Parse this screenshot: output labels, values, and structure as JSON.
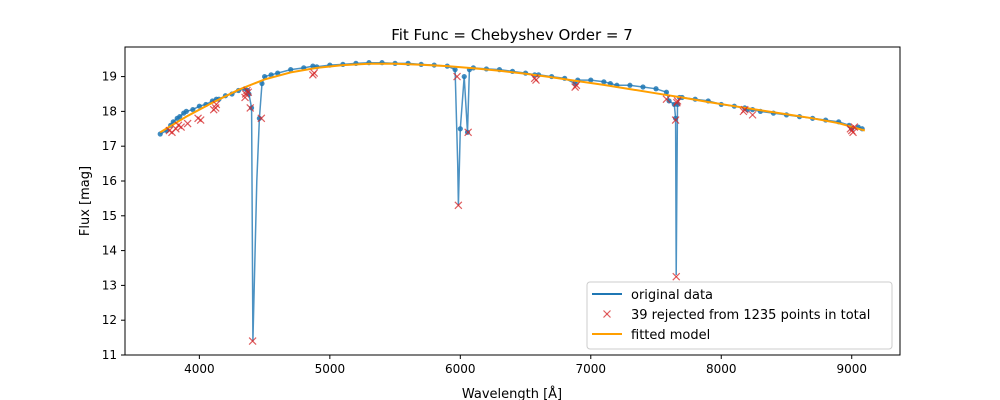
{
  "chart_data": {
    "type": "line",
    "title": "Fit Func = Chebyshev  Order = 7",
    "xlabel": "Wavelength [Å]",
    "ylabel": "Flux [mag]",
    "xlim": [
      3430,
      9370
    ],
    "ylim": [
      11,
      19.85
    ],
    "x_ticks": [
      4000,
      5000,
      6000,
      7000,
      8000,
      9000
    ],
    "y_ticks": [
      11,
      12,
      13,
      14,
      15,
      16,
      17,
      18,
      19
    ],
    "grid": false,
    "legend_position": "lower-right",
    "colors": {
      "original": "#1f77b4",
      "rejected": "#d62728",
      "fit": "#ff9f00"
    },
    "series": [
      {
        "name": "original data",
        "style": "line",
        "x": [
          3700,
          3750,
          3780,
          3800,
          3830,
          3850,
          3880,
          3900,
          3950,
          4000,
          4050,
          4100,
          4130,
          4150,
          4200,
          4250,
          4300,
          4350,
          4370,
          4380,
          4400,
          4410,
          4440,
          4460,
          4480,
          4500,
          4550,
          4600,
          4700,
          4800,
          4870,
          4900,
          5000,
          5100,
          5200,
          5300,
          5400,
          5500,
          5600,
          5700,
          5800,
          5900,
          5960,
          5980,
          5985,
          6000,
          6030,
          6055,
          6070,
          6100,
          6200,
          6300,
          6400,
          6500,
          6570,
          6600,
          6700,
          6800,
          6880,
          6900,
          7000,
          7100,
          7150,
          7200,
          7300,
          7400,
          7500,
          7580,
          7600,
          7640,
          7650,
          7655,
          7665,
          7680,
          7700,
          7800,
          7900,
          8000,
          8100,
          8180,
          8200,
          8240,
          8300,
          8400,
          8500,
          8600,
          8700,
          8800,
          8900,
          8980,
          9000,
          9050,
          9080
        ],
        "y": [
          17.35,
          17.45,
          17.6,
          17.7,
          17.8,
          17.85,
          17.95,
          18.0,
          18.05,
          18.15,
          18.2,
          18.3,
          18.35,
          18.35,
          18.45,
          18.5,
          18.6,
          18.65,
          18.6,
          18.5,
          18.1,
          11.4,
          16.0,
          17.8,
          18.8,
          19.0,
          19.05,
          19.1,
          19.2,
          19.25,
          19.3,
          19.28,
          19.33,
          19.35,
          19.38,
          19.4,
          19.4,
          19.38,
          19.38,
          19.35,
          19.33,
          19.3,
          19.2,
          16.5,
          15.3,
          17.5,
          19.0,
          17.4,
          19.2,
          19.25,
          19.22,
          19.2,
          19.15,
          19.1,
          19.05,
          19.05,
          19.0,
          18.95,
          18.8,
          18.9,
          18.9,
          18.85,
          18.8,
          18.75,
          18.75,
          18.7,
          18.65,
          18.55,
          18.3,
          18.2,
          17.8,
          13.3,
          18.2,
          18.4,
          18.4,
          18.35,
          18.3,
          18.2,
          18.15,
          18.1,
          18.05,
          18.05,
          18.0,
          17.95,
          17.9,
          17.85,
          17.8,
          17.75,
          17.7,
          17.6,
          17.5,
          17.55,
          17.5
        ]
      },
      {
        "name": "39 rejected from 1235 points in total",
        "style": "markers",
        "x": [
          3770,
          3790,
          3820,
          3840,
          3860,
          3910,
          3990,
          4010,
          4110,
          4125,
          4130,
          4350,
          4355,
          4365,
          4375,
          4390,
          4408,
          4475,
          4870,
          4880,
          5975,
          5985,
          6060,
          6570,
          6580,
          6880,
          6890,
          7580,
          7650,
          7655,
          7660,
          7665,
          8170,
          8180,
          8240,
          8990,
          9000,
          9010,
          9020
        ],
        "y": [
          17.45,
          17.4,
          17.5,
          17.6,
          17.55,
          17.65,
          17.8,
          17.75,
          18.05,
          18.1,
          18.2,
          18.4,
          18.5,
          18.6,
          18.55,
          18.1,
          11.4,
          17.8,
          19.05,
          19.1,
          19.0,
          15.3,
          17.4,
          18.95,
          18.9,
          18.7,
          18.75,
          18.35,
          17.75,
          13.25,
          18.25,
          18.3,
          18.0,
          18.05,
          17.9,
          17.5,
          17.45,
          17.4,
          17.55
        ]
      },
      {
        "name": "fitted model",
        "style": "line",
        "x": [
          3700,
          3900,
          4100,
          4300,
          4500,
          4700,
          4900,
          5100,
          5300,
          5500,
          5700,
          5900,
          6100,
          6300,
          6500,
          6700,
          6900,
          7100,
          7300,
          7500,
          7700,
          7900,
          8100,
          8300,
          8500,
          8700,
          8900,
          9100
        ],
        "y": [
          17.4,
          17.85,
          18.25,
          18.62,
          18.92,
          19.12,
          19.25,
          19.33,
          19.37,
          19.37,
          19.34,
          19.3,
          19.24,
          19.17,
          19.08,
          18.98,
          18.87,
          18.76,
          18.64,
          18.52,
          18.4,
          18.27,
          18.15,
          18.03,
          17.92,
          17.8,
          17.66,
          17.45
        ]
      }
    ]
  }
}
